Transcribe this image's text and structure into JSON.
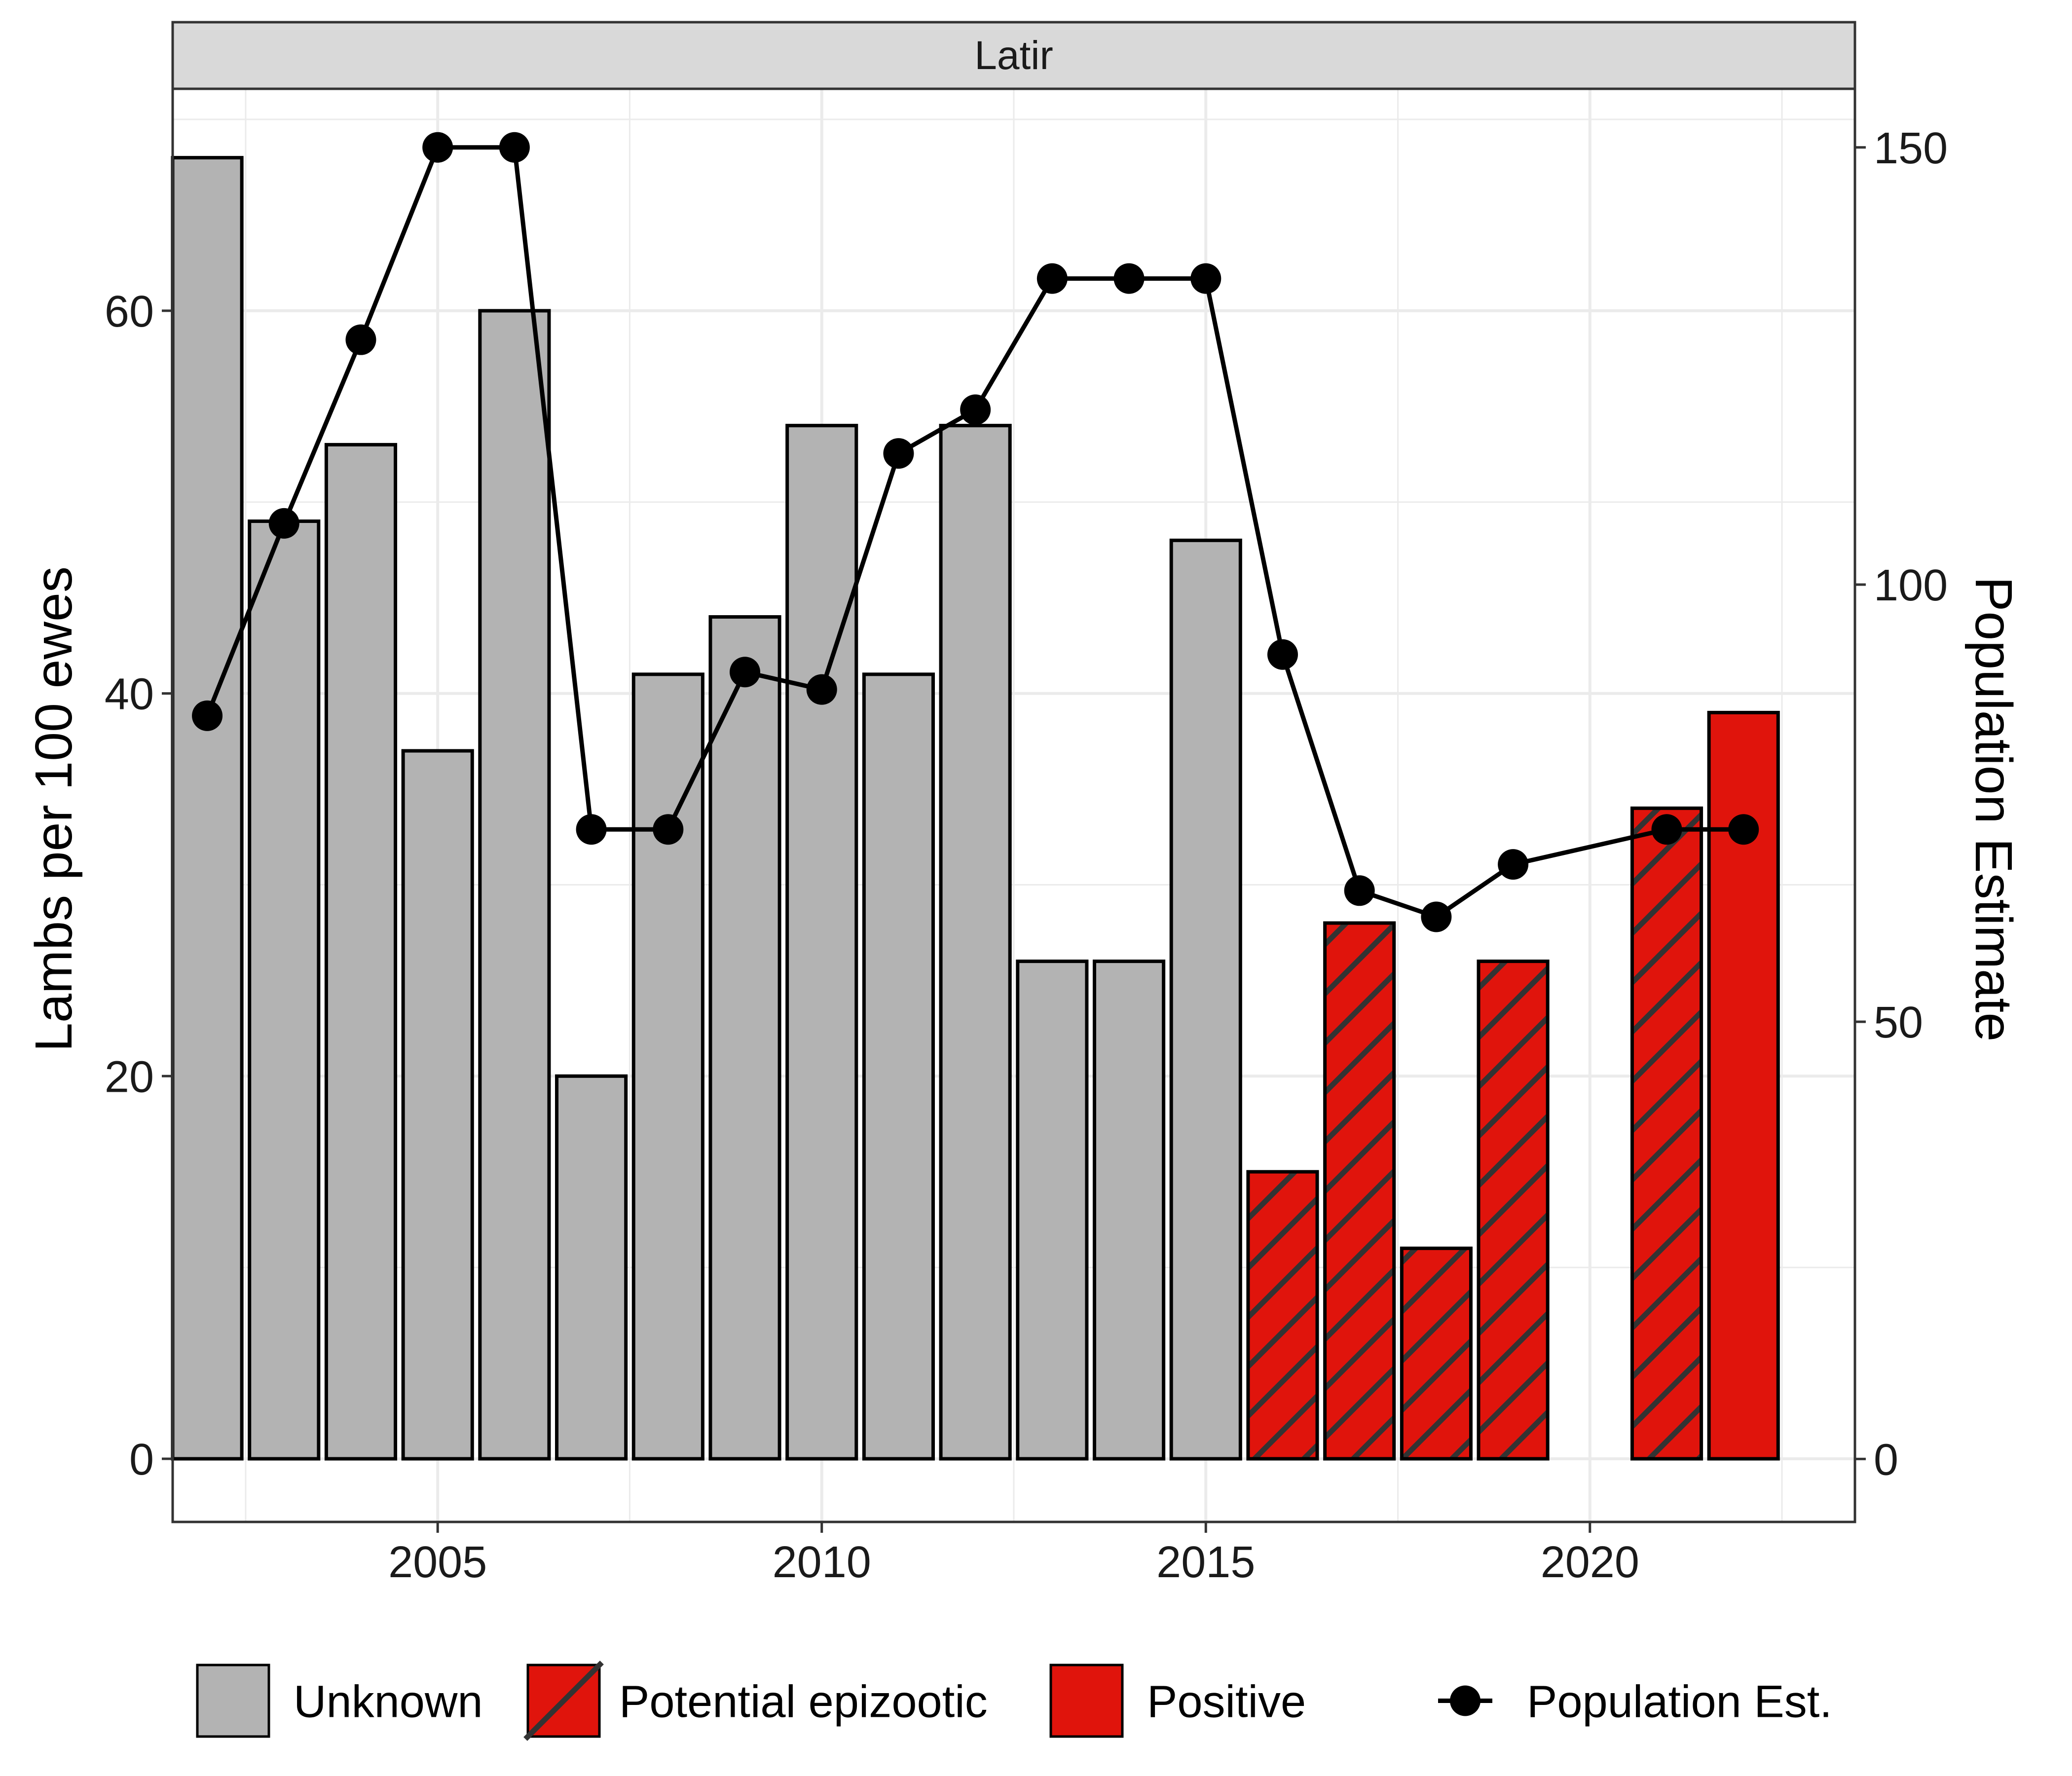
{
  "chart_data": {
    "type": "bar",
    "facet_title": "Latir",
    "x": [
      2002,
      2003,
      2004,
      2005,
      2006,
      2007,
      2008,
      2009,
      2010,
      2011,
      2012,
      2013,
      2014,
      2015,
      2016,
      2017,
      2018,
      2019,
      2021,
      2022
    ],
    "bars": {
      "name": "Lambs per 100 ewes",
      "values": [
        68,
        49,
        53,
        37,
        60,
        20,
        41,
        44,
        54,
        41,
        54,
        26,
        26,
        48,
        15,
        28,
        11,
        26,
        34,
        39
      ],
      "status": [
        "Unknown",
        "Unknown",
        "Unknown",
        "Unknown",
        "Unknown",
        "Unknown",
        "Unknown",
        "Unknown",
        "Unknown",
        "Unknown",
        "Unknown",
        "Unknown",
        "Unknown",
        "Unknown",
        "Potential epizootic",
        "Potential epizootic",
        "Potential epizootic",
        "Potential epizootic",
        "Potential epizootic",
        "Positive"
      ]
    },
    "line": {
      "name": "Population Est.",
      "x": [
        2002,
        2003,
        2004,
        2005,
        2006,
        2007,
        2008,
        2009,
        2010,
        2011,
        2012,
        2013,
        2014,
        2015,
        2016,
        2017,
        2018,
        2019,
        2021,
        2022
      ],
      "values": [
        85,
        107,
        128,
        150,
        150,
        72,
        72,
        90,
        88,
        115,
        120,
        135,
        135,
        135,
        92,
        65,
        62,
        68,
        72,
        72
      ]
    },
    "xlabel": "",
    "ylabel": "Lambs per 100 ewes",
    "y2label": "Population Estimate",
    "xlim": [
      2001.55,
      2023.45
    ],
    "ylim": [
      -3.3,
      71.6
    ],
    "y2lim": [
      -7.2,
      156.7
    ],
    "xticks": [
      2005,
      2010,
      2015,
      2020
    ],
    "yticks": [
      0,
      20,
      40,
      60
    ],
    "y2ticks": [
      0,
      50,
      100,
      150
    ],
    "grid": true,
    "legend_position": "bottom",
    "legend": [
      {
        "label": "Unknown",
        "kind": "fill",
        "color": "#b3b3b3"
      },
      {
        "label": "Potential epizootic",
        "kind": "hatched",
        "color": "#e0140c"
      },
      {
        "label": "Positive",
        "kind": "fill",
        "color": "#e0140c"
      },
      {
        "label": "Population Est.",
        "kind": "line-point",
        "color": "#000000"
      }
    ],
    "colors": {
      "unknown": "#b3b3b3",
      "positive": "#e0140c",
      "hatch": "#333333",
      "line": "#000000",
      "grid": "#ebebeb",
      "strip": "#d9d9d9"
    }
  }
}
